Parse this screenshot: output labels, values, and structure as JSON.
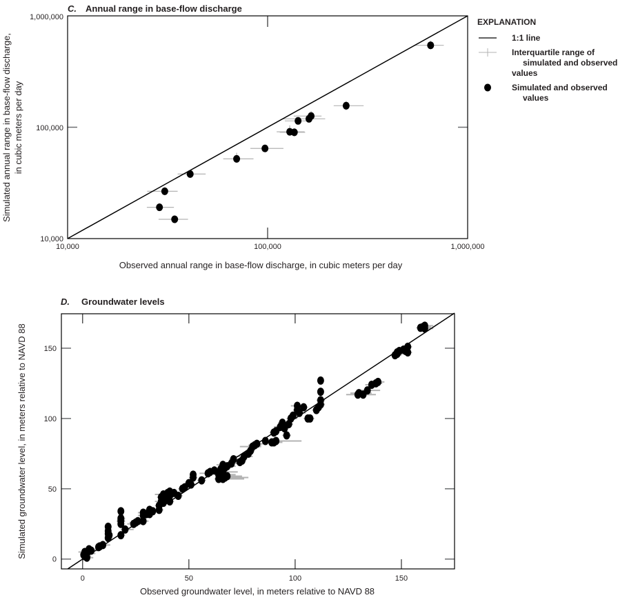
{
  "chart_data": [
    {
      "type": "scatter",
      "panel": "C.",
      "title": "Annual range in base-flow discharge",
      "xlabel": "Observed annual range in base-flow discharge, in cubic meters per day",
      "ylabel_lines": [
        "Simulated annual range in base-flow discharge,",
        "in cubic meters per day"
      ],
      "xscale": "log",
      "yscale": "log",
      "xlim": [
        10000,
        1000000
      ],
      "ylim": [
        10000,
        1000000
      ],
      "xticks": [
        10000,
        100000,
        1000000
      ],
      "xtick_labels": [
        "10,000",
        "100,000",
        "1,000,000"
      ],
      "ytick_labels": [
        "10,000",
        "100,000",
        "1,000,000"
      ],
      "grid": false,
      "points": [
        {
          "x": 653000,
          "y": 544000,
          "xiqr": [
            540000,
            760000
          ],
          "yiqr": [
            500000,
            600000
          ]
        },
        {
          "x": 247000,
          "y": 156000,
          "xiqr": [
            214000,
            302000
          ],
          "yiqr": [
            142000,
            172000
          ]
        },
        {
          "x": 165000,
          "y": 126000,
          "xiqr": [
            135000,
            186000
          ],
          "yiqr": [
            115000,
            140000
          ]
        },
        {
          "x": 161000,
          "y": 119000,
          "xiqr": [
            119000,
            194000
          ],
          "yiqr": [
            110000,
            130000
          ]
        },
        {
          "x": 142000,
          "y": 114000,
          "xiqr": [
            122000,
            158000
          ],
          "yiqr": [
            106000,
            122000
          ]
        },
        {
          "x": 129000,
          "y": 91000,
          "xiqr": [
            111000,
            153000
          ],
          "yiqr": [
            84000,
            104000
          ]
        },
        {
          "x": 136000,
          "y": 90000,
          "xiqr": [
            115000,
            154000
          ],
          "yiqr": [
            83000,
            98000
          ]
        },
        {
          "x": 97000,
          "y": 64500,
          "xiqr": [
            82000,
            120000
          ],
          "yiqr": [
            60000,
            70000
          ]
        },
        {
          "x": 70000,
          "y": 52000,
          "xiqr": [
            60000,
            85000
          ],
          "yiqr": [
            48000,
            59000
          ]
        },
        {
          "x": 41000,
          "y": 38000,
          "xiqr": [
            35500,
            49000
          ],
          "yiqr": [
            35000,
            41000
          ]
        },
        {
          "x": 30600,
          "y": 26600,
          "xiqr": [
            25000,
            35500
          ],
          "yiqr": [
            24500,
            29000
          ]
        },
        {
          "x": 28800,
          "y": 19100,
          "xiqr": [
            24900,
            34000
          ],
          "yiqr": [
            17800,
            20800
          ]
        },
        {
          "x": 34300,
          "y": 14900,
          "xiqr": [
            28500,
            40000
          ],
          "yiqr": [
            14000,
            16000
          ]
        }
      ],
      "reference_line": "1:1 line"
    },
    {
      "type": "scatter",
      "panel": "D.",
      "title": "Groundwater levels",
      "xlabel": "Observed groundwater level, in meters relative to NAVD 88",
      "ylabel": "Simulated groundwater level, in meters relative to NAVD 88",
      "xlim": [
        -10,
        175
      ],
      "ylim": [
        -7,
        174.5
      ],
      "xticks": [
        0,
        50,
        100,
        150
      ],
      "yticks": [
        0,
        50,
        100,
        150
      ],
      "xtick_labels": [
        "0",
        "50",
        "100",
        "150"
      ],
      "ytick_labels": [
        "0",
        "50",
        "100",
        "150"
      ],
      "grid": false,
      "points": [
        [
          1,
          2,
          -1,
          4
        ],
        [
          1,
          5,
          -2,
          5
        ],
        [
          2,
          4,
          0,
          6
        ],
        [
          3,
          6,
          1,
          7
        ],
        [
          3,
          7,
          1,
          6
        ],
        [
          2,
          1,
          0,
          5
        ],
        [
          0.5,
          3,
          -1,
          3
        ],
        [
          4,
          6,
          2,
          6
        ],
        [
          7.5,
          8.5,
          6,
          11
        ],
        [
          9.5,
          10,
          8,
          13
        ],
        [
          8,
          9,
          6,
          10
        ],
        [
          12,
          15,
          11,
          14
        ],
        [
          12,
          18,
          11,
          14
        ],
        [
          12,
          20,
          11,
          13
        ],
        [
          12,
          23,
          12,
          13
        ],
        [
          12.5,
          17,
          11,
          14
        ],
        [
          18,
          17,
          17,
          20
        ],
        [
          18,
          25,
          17,
          19
        ],
        [
          18,
          28,
          17,
          19
        ],
        [
          18,
          29,
          17,
          20
        ],
        [
          18,
          34,
          18,
          19
        ],
        [
          18,
          27,
          16,
          20
        ],
        [
          20,
          21,
          18,
          24
        ],
        [
          24,
          25,
          21,
          28
        ],
        [
          26,
          27,
          23,
          29
        ],
        [
          25,
          26,
          22,
          27
        ],
        [
          28.5,
          27,
          27,
          31
        ],
        [
          28.5,
          31,
          26,
          31
        ],
        [
          28.5,
          33,
          26,
          30
        ],
        [
          30,
          32,
          28,
          33
        ],
        [
          31.5,
          32,
          30,
          34
        ],
        [
          31.5,
          35,
          29,
          34
        ],
        [
          33,
          34,
          31,
          36
        ],
        [
          36,
          35,
          35,
          38
        ],
        [
          36,
          38,
          34,
          39
        ],
        [
          37,
          41,
          34,
          40
        ],
        [
          37,
          44,
          35,
          40
        ],
        [
          38,
          46,
          34,
          41
        ],
        [
          38,
          40,
          36,
          40
        ],
        [
          39,
          43,
          36,
          42
        ],
        [
          40,
          47,
          37,
          42
        ],
        [
          41,
          41,
          40,
          43
        ],
        [
          41,
          45,
          39,
          44
        ],
        [
          41,
          48,
          39,
          44
        ],
        [
          43,
          47,
          41,
          46
        ],
        [
          45,
          45,
          43,
          47
        ],
        [
          47,
          50,
          45,
          49
        ],
        [
          48,
          51,
          46,
          50
        ],
        [
          50,
          54,
          48,
          52
        ],
        [
          51,
          53,
          49,
          53
        ],
        [
          52,
          58,
          50,
          54
        ],
        [
          52,
          60,
          51,
          53
        ],
        [
          56,
          56,
          54,
          58
        ],
        [
          59,
          61,
          55,
          62
        ],
        [
          60,
          62,
          58,
          63
        ],
        [
          62,
          63,
          60,
          64
        ],
        [
          64,
          57,
          62,
          70
        ],
        [
          64,
          60,
          62,
          72
        ],
        [
          65,
          64,
          63,
          68
        ],
        [
          66,
          67,
          63,
          70
        ],
        [
          66,
          57,
          64,
          76
        ],
        [
          67,
          58,
          64,
          78
        ],
        [
          66,
          62,
          64,
          73
        ],
        [
          67,
          65,
          65,
          70
        ],
        [
          68,
          66,
          65,
          72
        ],
        [
          68,
          59,
          65,
          75
        ],
        [
          65,
          58,
          63,
          72
        ],
        [
          70,
          68,
          68,
          73
        ],
        [
          71,
          71,
          69,
          74
        ],
        [
          74,
          69,
          72,
          76
        ],
        [
          75,
          70,
          73,
          77
        ],
        [
          76,
          73,
          72,
          80
        ],
        [
          78,
          75,
          76,
          80
        ],
        [
          79,
          77,
          77,
          81
        ],
        [
          80,
          80,
          74,
          84
        ],
        [
          81,
          81,
          78,
          84
        ],
        [
          82,
          82,
          79,
          85
        ],
        [
          86,
          84,
          84,
          88
        ],
        [
          89,
          83,
          86,
          92
        ],
        [
          90,
          83,
          88,
          94
        ],
        [
          91,
          84,
          86,
          103
        ],
        [
          90,
          90,
          88,
          92
        ],
        [
          91,
          91,
          89,
          93
        ],
        [
          93,
          94,
          90,
          95
        ],
        [
          94,
          97,
          92,
          96
        ],
        [
          95,
          93,
          93,
          97
        ],
        [
          96,
          88,
          94,
          98
        ],
        [
          97,
          96,
          95,
          99
        ],
        [
          98,
          100,
          96,
          101
        ],
        [
          99,
          102,
          97,
          101
        ],
        [
          101,
          109,
          98,
          104
        ],
        [
          101,
          106,
          99,
          104
        ],
        [
          102,
          104,
          100,
          105
        ],
        [
          104,
          108,
          101,
          106
        ],
        [
          106,
          100,
          104,
          108
        ],
        [
          107,
          100,
          105,
          109
        ],
        [
          110,
          106,
          108,
          112
        ],
        [
          111,
          108,
          109,
          113
        ],
        [
          112,
          110,
          110,
          114
        ],
        [
          112,
          113,
          110,
          114
        ],
        [
          112,
          119,
          111,
          113
        ],
        [
          112,
          127,
          111,
          113
        ],
        [
          129.5,
          117,
          124,
          135
        ],
        [
          130,
          118,
          126,
          136
        ],
        [
          132,
          117,
          128,
          138
        ],
        [
          134,
          120,
          130,
          140
        ],
        [
          136,
          124,
          133,
          140
        ],
        [
          138,
          125,
          135,
          141
        ],
        [
          139,
          126,
          136,
          142
        ],
        [
          147,
          145,
          145,
          150
        ],
        [
          148,
          146,
          146,
          151
        ],
        [
          148,
          147,
          146,
          150
        ],
        [
          149,
          148,
          147,
          152
        ],
        [
          151,
          149,
          149,
          153
        ],
        [
          152,
          148,
          150,
          154
        ],
        [
          153,
          147,
          151,
          155
        ],
        [
          153,
          151,
          151,
          155
        ],
        [
          159,
          164.5,
          157,
          163
        ],
        [
          160,
          165,
          158,
          164
        ],
        [
          161,
          166,
          159,
          165
        ],
        [
          161,
          164,
          158,
          165
        ]
      ],
      "reference_line": "1:1 line"
    }
  ],
  "legend": {
    "heading": "EXPLANATION",
    "items": [
      {
        "label": "1:1 line"
      },
      {
        "label_lines": [
          "Interquartile range of",
          "simulated and observed",
          "values"
        ]
      },
      {
        "label_lines": [
          "Simulated and observed",
          "values"
        ]
      }
    ]
  },
  "colors": {
    "ink": "#000000",
    "frame": "#6d6e71",
    "iqr": "#b3b3b3"
  }
}
